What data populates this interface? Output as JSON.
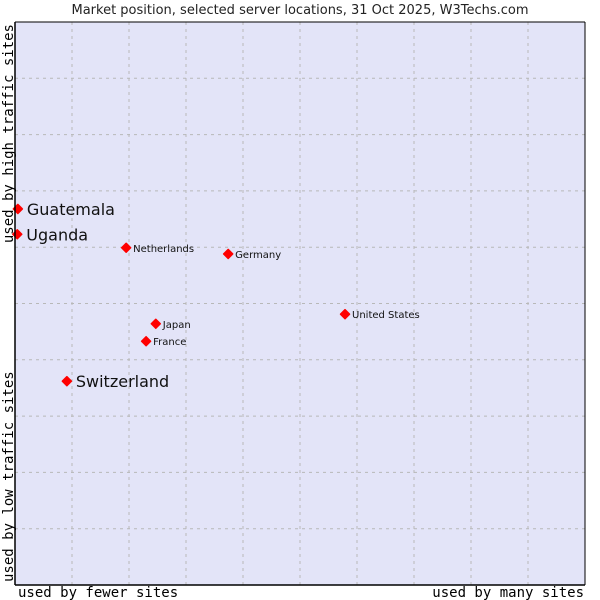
{
  "chart_data": {
    "type": "scatter",
    "title": "Market position, selected server locations, 31 Oct 2025, W3Techs.com",
    "xlabel_left": "used by fewer sites",
    "xlabel_right": "used by many sites",
    "ylabel_top": "used by high traffic sites",
    "ylabel_bottom": "used by low traffic sites",
    "xlim": [
      0,
      100
    ],
    "ylim": [
      0,
      100
    ],
    "grid": true,
    "grid_divisions": 10,
    "colors": {
      "plot_bg": "#e3e4f8",
      "point": "#ff0000",
      "grid": "#b8b8b8"
    },
    "points": [
      {
        "label": "Guatemala",
        "x": 0.5,
        "y": 66.8,
        "highlight": true
      },
      {
        "label": "Uganda",
        "x": 0.4,
        "y": 62.3,
        "highlight": true
      },
      {
        "label": "Netherlands",
        "x": 19.5,
        "y": 59.9,
        "highlight": false
      },
      {
        "label": "Germany",
        "x": 37.4,
        "y": 58.8,
        "highlight": false
      },
      {
        "label": "United States",
        "x": 57.9,
        "y": 48.1,
        "highlight": false
      },
      {
        "label": "Japan",
        "x": 24.7,
        "y": 46.4,
        "highlight": false
      },
      {
        "label": "France",
        "x": 23.0,
        "y": 43.3,
        "highlight": false
      },
      {
        "label": "Switzerland",
        "x": 9.1,
        "y": 36.2,
        "highlight": true
      }
    ]
  }
}
